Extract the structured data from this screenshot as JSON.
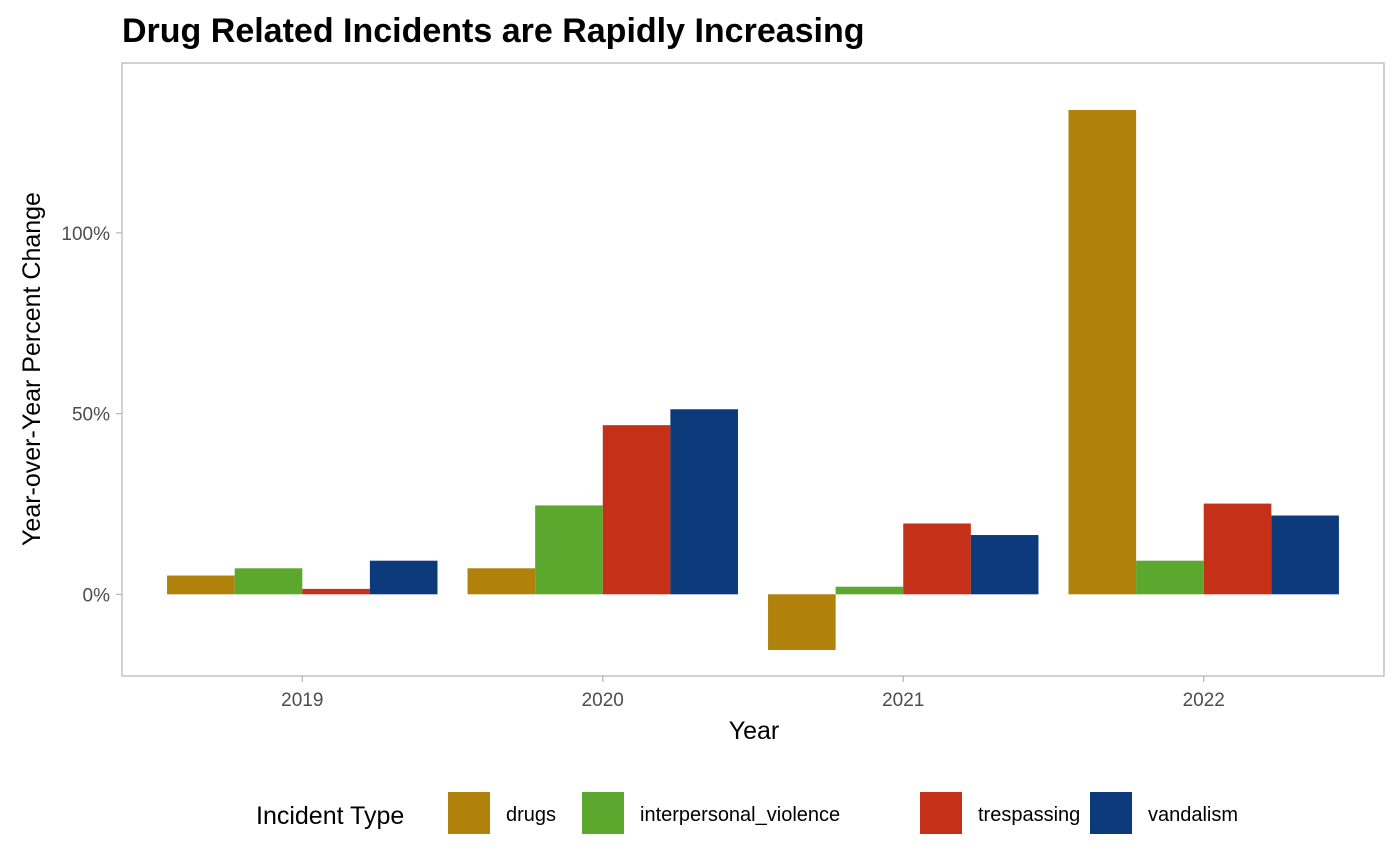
{
  "chart_data": {
    "type": "bar",
    "title": "Drug Related Incidents are Rapidly Increasing",
    "xlabel": "Year",
    "ylabel": "Year-over-Year Percent Change",
    "categories": [
      "2019",
      "2020",
      "2021",
      "2022"
    ],
    "series": [
      {
        "name": "drugs",
        "color": "#B0820C",
        "values": [
          5.2,
          7.2,
          -15.4,
          134
        ]
      },
      {
        "name": "interpersonal_violence",
        "color": "#5CA82E",
        "values": [
          7.2,
          24.6,
          2.1,
          9.3
        ]
      },
      {
        "name": "trespassing",
        "color": "#C43118",
        "values": [
          1.5,
          46.8,
          19.6,
          25.1
        ]
      },
      {
        "name": "vandalism",
        "color": "#0C3A7B",
        "values": [
          9.3,
          51.2,
          16.4,
          21.8
        ]
      }
    ],
    "ylim": [
      -22.6,
      147
    ],
    "yticks": [
      0,
      50,
      100
    ],
    "ytick_labels": [
      "0%",
      "50%",
      "100%"
    ],
    "grid": false,
    "legend": {
      "title": "Incident Type",
      "position": "bottom"
    }
  }
}
